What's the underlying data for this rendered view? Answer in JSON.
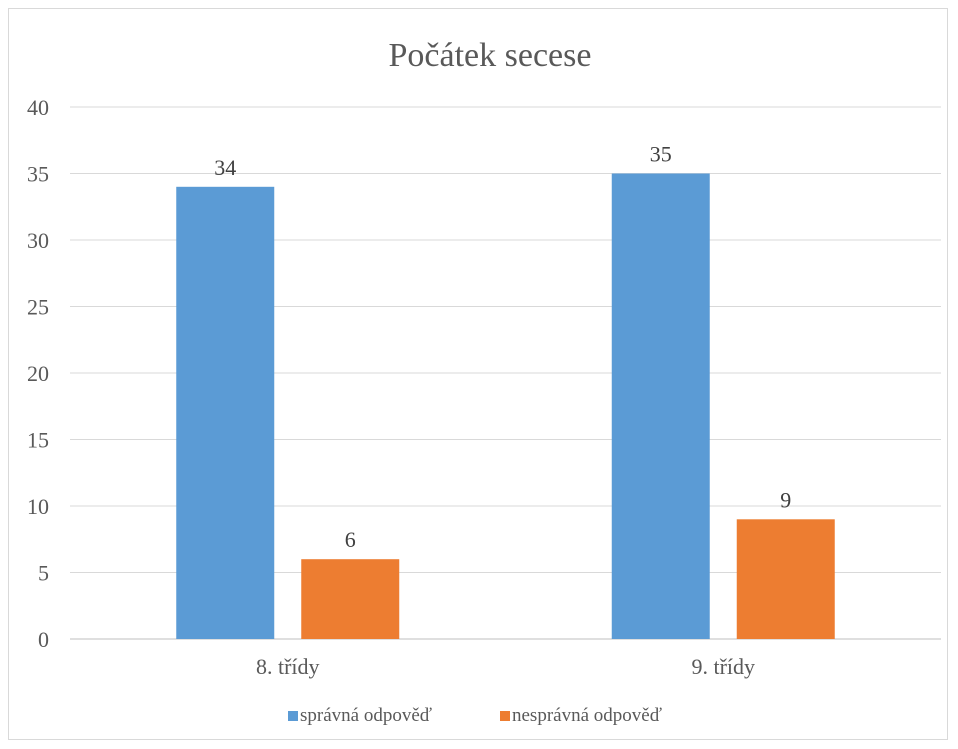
{
  "chart_data": {
    "type": "bar",
    "title": "Počátek secese",
    "xlabel": "",
    "ylabel": "",
    "categories": [
      "8. třídy",
      "9. třídy"
    ],
    "series": [
      {
        "name": "správná odpověď",
        "values": [
          34,
          35
        ],
        "color": "#5b9bd5"
      },
      {
        "name": "nesprávná odpověď",
        "values": [
          6,
          9
        ],
        "color": "#ed7d31"
      }
    ],
    "ylim": [
      0,
      40
    ],
    "yticks": [
      0,
      5,
      10,
      15,
      20,
      25,
      30,
      35,
      40
    ],
    "grid": true,
    "legend_position": "bottom",
    "data_labels": true
  }
}
